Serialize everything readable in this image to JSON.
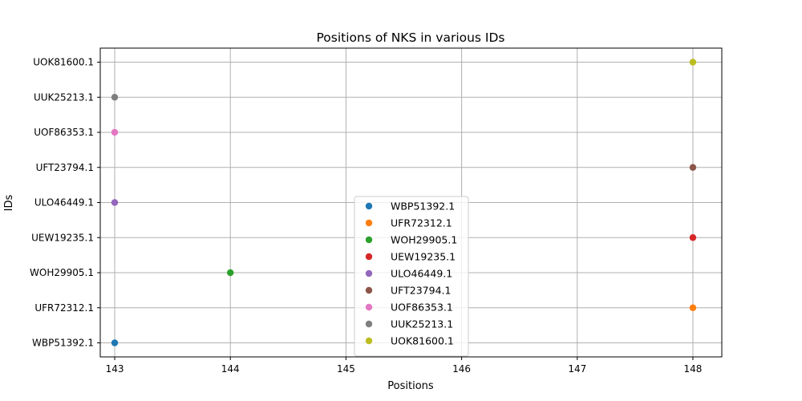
{
  "chart_data": {
    "type": "scatter",
    "title": "Positions of NKS in various IDs",
    "xlabel": "Positions",
    "ylabel": "IDs",
    "xlim": [
      142.875,
      148.25
    ],
    "x_ticks": [
      143,
      144,
      145,
      146,
      147,
      148
    ],
    "categories": [
      "WBP51392.1",
      "UFR72312.1",
      "WOH29905.1",
      "UEW19235.1",
      "ULO46449.1",
      "UFT23794.1",
      "UOF86353.1",
      "UUK25213.1",
      "UOK81600.1"
    ],
    "grid": true,
    "legend_position": "lower-center",
    "series": [
      {
        "name": "WBP51392.1",
        "color": "#1f77b4",
        "points": [
          {
            "x": 143,
            "y": "WBP51392.1"
          }
        ]
      },
      {
        "name": "UFR72312.1",
        "color": "#ff7f0e",
        "points": [
          {
            "x": 148,
            "y": "UFR72312.1"
          }
        ]
      },
      {
        "name": "WOH29905.1",
        "color": "#2ca02c",
        "points": [
          {
            "x": 144,
            "y": "WOH29905.1"
          }
        ]
      },
      {
        "name": "UEW19235.1",
        "color": "#d62728",
        "points": [
          {
            "x": 148,
            "y": "UEW19235.1"
          }
        ]
      },
      {
        "name": "ULO46449.1",
        "color": "#9467bd",
        "points": [
          {
            "x": 143,
            "y": "ULO46449.1"
          }
        ]
      },
      {
        "name": "UFT23794.1",
        "color": "#8c564b",
        "points": [
          {
            "x": 148,
            "y": "UFT23794.1"
          }
        ]
      },
      {
        "name": "UOF86353.1",
        "color": "#e377c2",
        "points": [
          {
            "x": 143,
            "y": "UOF86353.1"
          }
        ]
      },
      {
        "name": "UUK25213.1",
        "color": "#7f7f7f",
        "points": [
          {
            "x": 143,
            "y": "UUK25213.1"
          }
        ]
      },
      {
        "name": "UOK81600.1",
        "color": "#bcbd22",
        "points": [
          {
            "x": 148,
            "y": "UOK81600.1"
          }
        ]
      }
    ]
  }
}
